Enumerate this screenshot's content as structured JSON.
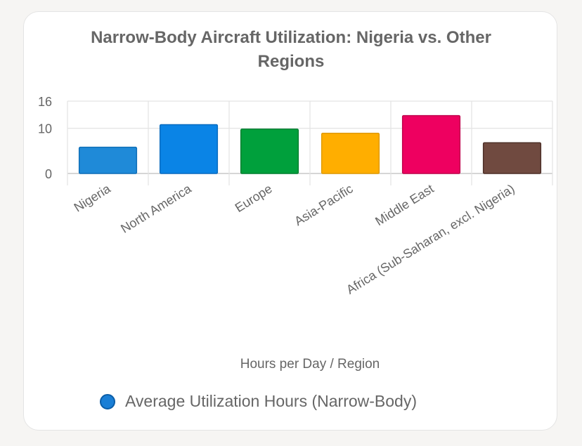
{
  "chart_data": {
    "type": "bar",
    "title_lines": [
      "Narrow-Body Aircraft Utilization: Nigeria vs. Other",
      "Regions"
    ],
    "xlabel": "Hours per Day / Region",
    "ylabel": "",
    "ylim": [
      0,
      16
    ],
    "yticks": [
      0,
      10,
      16
    ],
    "grid": true,
    "legend_position": "bottom",
    "categories": [
      "Nigeria",
      "North America",
      "Europe",
      "Asia-Pacific",
      "Middle East",
      "Africa (Sub-Saharan, excl. Nigeria)"
    ],
    "series": [
      {
        "name": "Average Utilization Hours (Narrow-Body)",
        "values": [
          5.8,
          10.8,
          9.8,
          8.9,
          12.8,
          6.8
        ],
        "colors": [
          "#1f8ad8",
          "#0a84e6",
          "#00a03c",
          "#ffae00",
          "#ee0060",
          "#704a40"
        ],
        "border_colors": [
          "#0f6fb8",
          "#0a6cc0",
          "#008030",
          "#e09a00",
          "#c0004c",
          "#4e3028"
        ]
      }
    ]
  }
}
